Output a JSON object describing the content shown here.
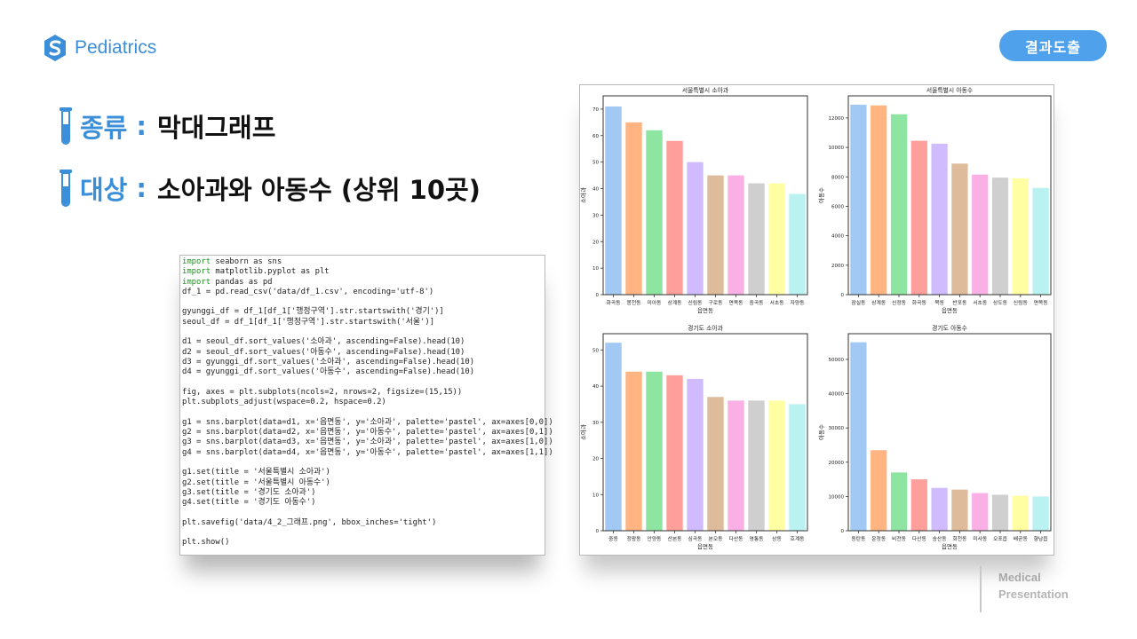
{
  "brand": {
    "name": "Pediatrics",
    "icon": "s-logo-icon"
  },
  "badge": {
    "label": "결과도출"
  },
  "headings": [
    {
      "key": "종류",
      "colon": ":",
      "value": "막대그래프"
    },
    {
      "key": "대상",
      "colon": ":",
      "value": "소아과와 아동수 (상위 10곳)"
    }
  ],
  "code_lines": [
    "import seaborn as sns",
    "import matplotlib.pyplot as plt",
    "import pandas as pd",
    "df_1 = pd.read_csv('data/df_1.csv', encoding='utf-8')",
    "",
    "gyunggi_df = df_1[df_1['행정구역'].str.startswith('경기')]",
    "seoul_df = df_1[df_1['행정구역'].str.startswith('서울')]",
    "",
    "d1 = seoul_df.sort_values('소아과', ascending=False).head(10)",
    "d2 = seoul_df.sort_values('아동수', ascending=False).head(10)",
    "d3 = gyunggi_df.sort_values('소아과', ascending=False).head(10)",
    "d4 = gyunggi_df.sort_values('아동수', ascending=False).head(10)",
    "",
    "fig, axes = plt.subplots(ncols=2, nrows=2, figsize=(15,15))",
    "plt.subplots_adjust(wspace=0.2, hspace=0.2)",
    "",
    "g1 = sns.barplot(data=d1, x='읍면동', y='소아과', palette='pastel', ax=axes[0,0])",
    "g2 = sns.barplot(data=d2, x='읍면동', y='아동수', palette='pastel', ax=axes[0,1])",
    "g3 = sns.barplot(data=d3, x='읍면동', y='소아과', palette='pastel', ax=axes[1,0])",
    "g4 = sns.barplot(data=d4, x='읍면동', y='아동수', palette='pastel', ax=axes[1,1])",
    "",
    "g1.set(title = '서울특별시 소아과')",
    "g2.set(title = '서울특별시 아동수')",
    "g3.set(title = '경기도 소아과')",
    "g4.set(title = '경기도 아동수')",
    "",
    "plt.savefig('data/4_2_그래프.png', bbox_inches='tight')",
    "",
    "plt.show()"
  ],
  "palette": [
    "#a1c9f4",
    "#ffb482",
    "#8de5a1",
    "#ff9f9b",
    "#d0bbff",
    "#debb9b",
    "#fab0e4",
    "#cfcfcf",
    "#fffea3",
    "#b9f2f0"
  ],
  "chart_data": [
    {
      "type": "bar",
      "title": "서울특별시 소아과",
      "xlabel": "읍면동",
      "ylabel": "소아과",
      "categories": [
        "화곡동",
        "봉천동",
        "미아동",
        "상계동",
        "신림동",
        "구로동",
        "면목동",
        "중곡동",
        "서초동",
        "자양동"
      ],
      "values": [
        71,
        65,
        62,
        58,
        50,
        45,
        45,
        42,
        42,
        38
      ],
      "ylim": [
        0,
        75
      ],
      "yticks": [
        0,
        10,
        20,
        30,
        40,
        50,
        60,
        70
      ],
      "grid": false
    },
    {
      "type": "bar",
      "title": "서울특별시 아동수",
      "xlabel": "읍면동",
      "ylabel": "아동수",
      "categories": [
        "잠실동",
        "상계동",
        "신정동",
        "화곡동",
        "목동",
        "반포동",
        "서초동",
        "상도동",
        "신림동",
        "면목동"
      ],
      "values": [
        12900,
        12850,
        12250,
        10450,
        10250,
        8900,
        8150,
        7950,
        7900,
        7250
      ],
      "ylim": [
        0,
        13500
      ],
      "yticks": [
        0,
        2000,
        4000,
        6000,
        8000,
        10000,
        12000
      ],
      "grid": false
    },
    {
      "type": "bar",
      "title": "경기도 소아과",
      "xlabel": "읍면동",
      "ylabel": "소아과",
      "categories": [
        "중동",
        "정왕동",
        "안양동",
        "산본동",
        "심곡동",
        "본오동",
        "다산동",
        "영통동",
        "상동",
        "호계동"
      ],
      "values": [
        52,
        44,
        44,
        43,
        42,
        37,
        36,
        36,
        36,
        35
      ],
      "ylim": [
        0,
        54.5
      ],
      "yticks": [
        0,
        10,
        20,
        30,
        40,
        50
      ],
      "grid": false
    },
    {
      "type": "bar",
      "title": "경기도 아동수",
      "xlabel": "읍면동",
      "ylabel": "아동수",
      "categories": [
        "동탄동",
        "운정동",
        "비전동",
        "다산동",
        "송산동",
        "회천동",
        "미사동",
        "오포읍",
        "배곧동",
        "향남읍"
      ],
      "values": [
        55000,
        23500,
        17000,
        15000,
        12500,
        12000,
        11000,
        10500,
        10200,
        10000
      ],
      "ylim": [
        0,
        57500
      ],
      "yticks": [
        0,
        10000,
        20000,
        30000,
        40000,
        50000
      ],
      "grid": false
    }
  ],
  "footer": {
    "line1": "Medical",
    "line2": "Presentation"
  }
}
